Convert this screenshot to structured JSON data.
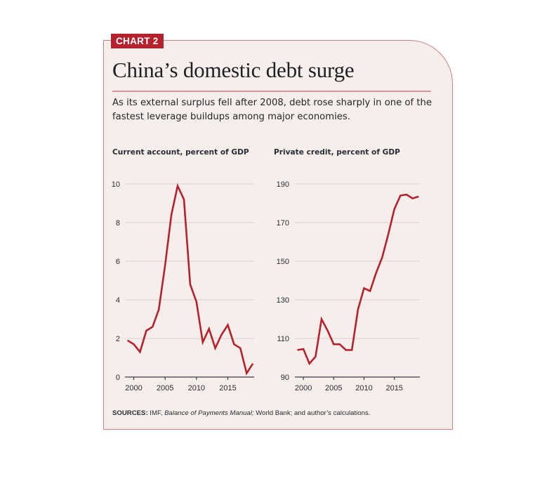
{
  "badge": "CHART 2",
  "title": "China’s domestic debt surge",
  "subtitle": "As its external surplus fell after 2008, debt rose sharply in one of the fastest leverage buildups among major economies.",
  "source": {
    "label": "SOURCES:",
    "part1": " IMF, ",
    "italic": "Balance of Payments Manual;",
    "part2": " World Bank; and author’s calculations."
  },
  "colors": {
    "accent": "#b5222e",
    "line": "#b5222e",
    "background": "#f5eeeb",
    "border": "#cf7f86",
    "grid": "#ddd3d0"
  },
  "chart_data": [
    {
      "type": "line",
      "title": "Current account, percent of GDP",
      "xlabel": "",
      "ylabel": "",
      "x": [
        1999,
        2000,
        2001,
        2002,
        2003,
        2004,
        2005,
        2006,
        2007,
        2008,
        2009,
        2010,
        2011,
        2012,
        2013,
        2014,
        2015,
        2016,
        2017,
        2018,
        2019
      ],
      "series": [
        {
          "name": "Current account",
          "values": [
            1.9,
            1.7,
            1.3,
            2.4,
            2.6,
            3.5,
            5.8,
            8.4,
            9.9,
            9.2,
            4.8,
            3.9,
            1.8,
            2.5,
            1.5,
            2.2,
            2.7,
            1.7,
            1.5,
            0.2,
            0.7
          ]
        }
      ],
      "yticks": [
        0,
        2,
        4,
        6,
        8,
        10
      ],
      "xticks": [
        2000,
        2005,
        2010,
        2015
      ],
      "ylim": [
        0,
        10
      ],
      "xlim": [
        1998.6,
        2019.2
      ],
      "grid": true,
      "legend": "none"
    },
    {
      "type": "line",
      "title": "Private credit, percent of GDP",
      "xlabel": "",
      "ylabel": "",
      "x": [
        1999,
        2000,
        2001,
        2002,
        2003,
        2004,
        2005,
        2006,
        2007,
        2008,
        2009,
        2010,
        2011,
        2012,
        2013,
        2014,
        2015,
        2016,
        2017,
        2018,
        2019
      ],
      "series": [
        {
          "name": "Private credit",
          "values": [
            104,
            104.5,
            97,
            100.5,
            120,
            114,
            107,
            107,
            104,
            104,
            125,
            136,
            134.5,
            144,
            152,
            164,
            177,
            184,
            184.5,
            182.5,
            183.5
          ]
        }
      ],
      "yticks": [
        90,
        110,
        130,
        150,
        170,
        190
      ],
      "xticks": [
        2000,
        2005,
        2010,
        2015
      ],
      "ylim": [
        90,
        190
      ],
      "xlim": [
        1998.6,
        2019.2
      ],
      "grid": true,
      "legend": "none"
    }
  ]
}
